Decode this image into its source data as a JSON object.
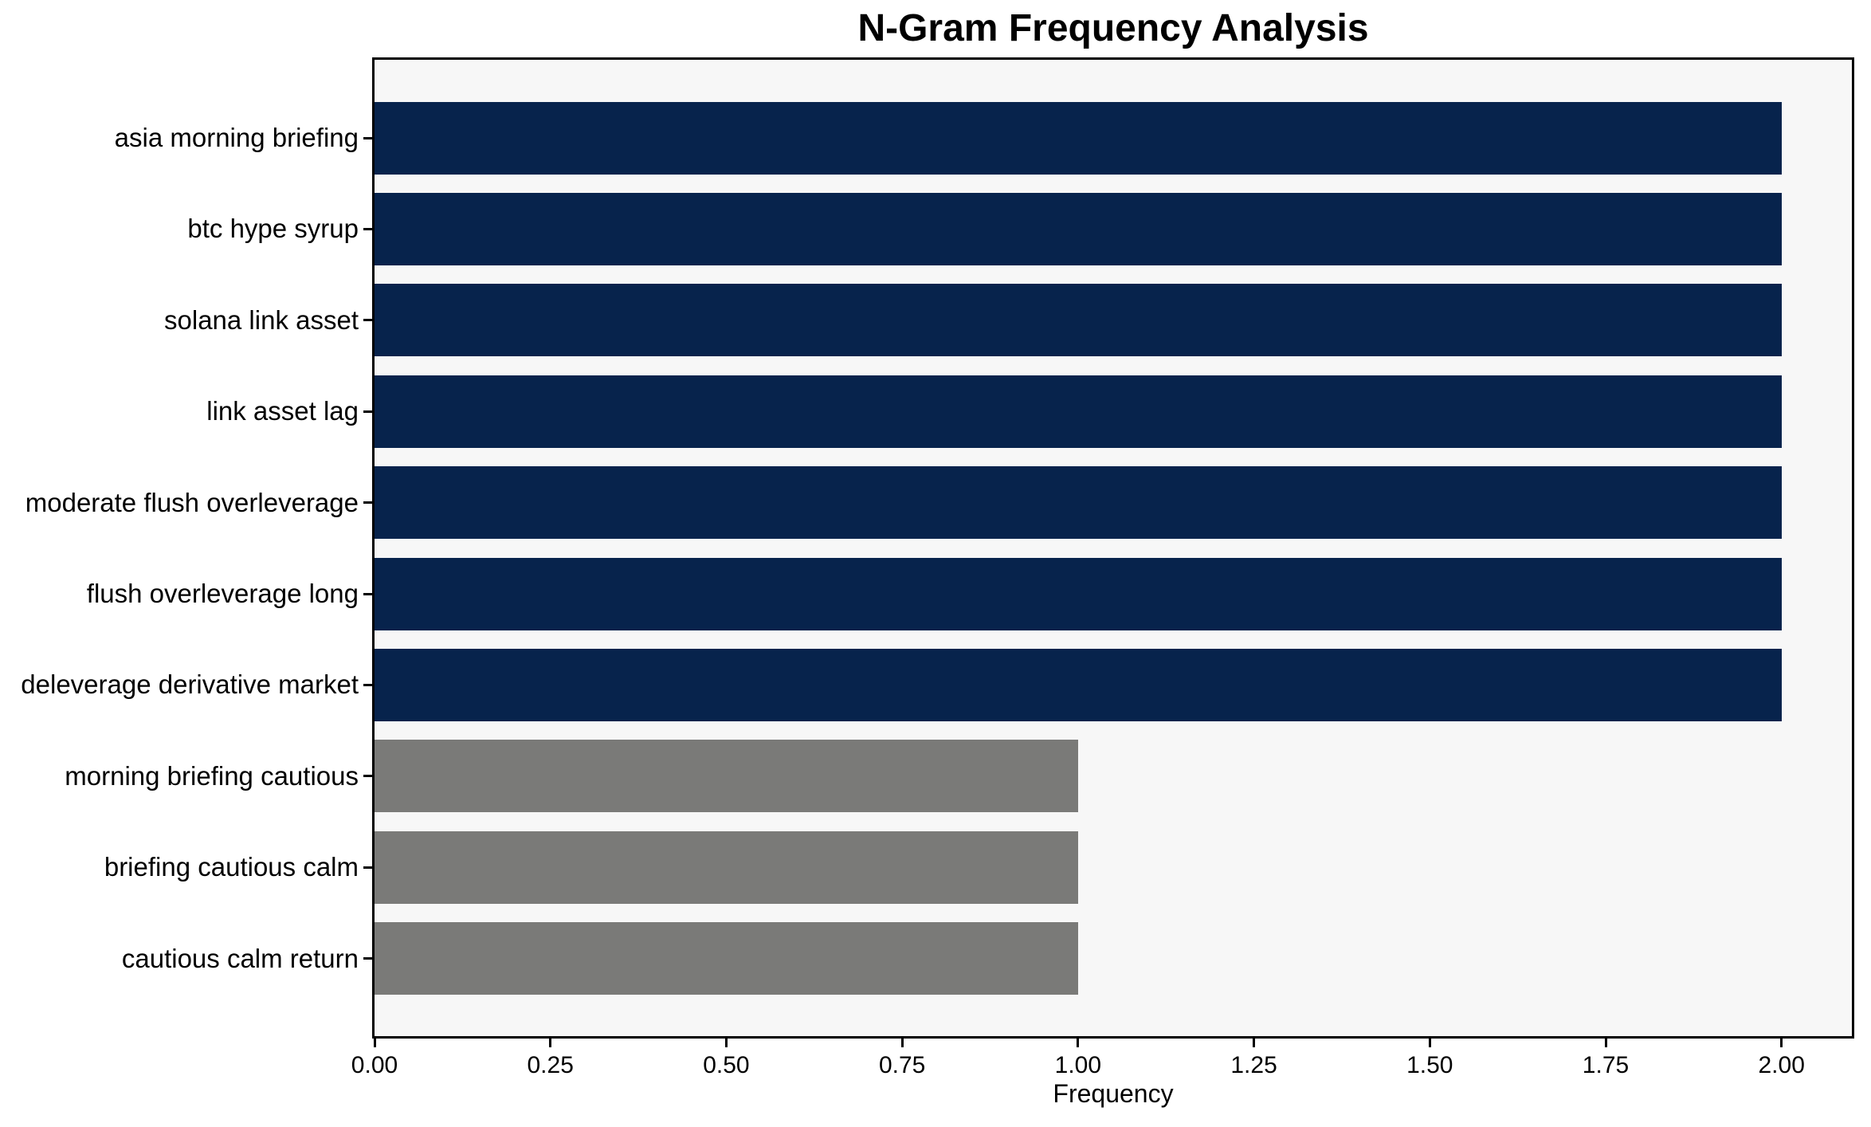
{
  "chart_data": {
    "type": "bar",
    "orientation": "horizontal",
    "title": "N-Gram Frequency Analysis",
    "xlabel": "Frequency",
    "ylabel": "",
    "categories": [
      "asia morning briefing",
      "btc hype syrup",
      "solana link asset",
      "link asset lag",
      "moderate flush overleverage",
      "flush overleverage long",
      "deleverage derivative market",
      "morning briefing cautious",
      "briefing cautious calm",
      "cautious calm return"
    ],
    "values": [
      2,
      2,
      2,
      2,
      2,
      2,
      2,
      1,
      1,
      1
    ],
    "bar_colors": [
      "#07234c",
      "#07234c",
      "#07234c",
      "#07234c",
      "#07234c",
      "#07234c",
      "#07234c",
      "#7a7a78",
      "#7a7a78",
      "#7a7a78"
    ],
    "xlim": [
      0,
      2.1
    ],
    "xticks": [
      0,
      0.25,
      0.5,
      0.75,
      1.0,
      1.25,
      1.5,
      1.75,
      2.0
    ],
    "xtick_labels": [
      "0.00",
      "0.25",
      "0.50",
      "0.75",
      "1.00",
      "1.25",
      "1.50",
      "1.75",
      "2.00"
    ],
    "grid": false,
    "legend": "none",
    "colors": {
      "high_freq_bar": "#07234c",
      "low_freq_bar": "#7a7a78",
      "plot_background": "#f7f7f7",
      "figure_background": "#ffffff",
      "spine": "#000000",
      "text": "#000000"
    }
  }
}
